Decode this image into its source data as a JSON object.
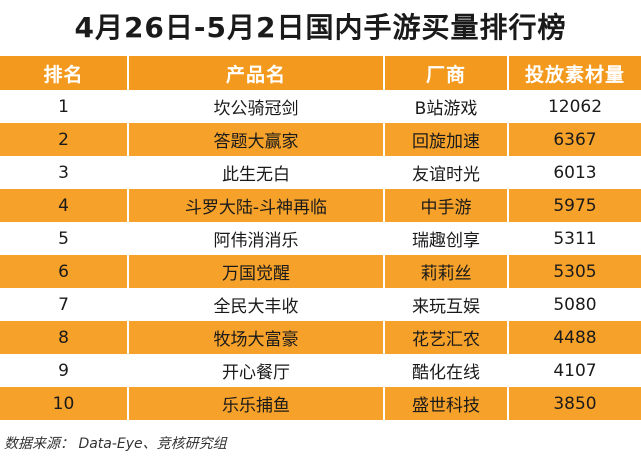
{
  "title": "4月26日-5月2日国内手游买量排行榜",
  "headers": [
    "排名",
    "产品名",
    "厂商",
    "投放素材量"
  ],
  "rows": [
    {
      "rank": "1",
      "product": "坎公骑冠剑",
      "vendor": "B站游戏",
      "count": "12062"
    },
    {
      "rank": "2",
      "product": "答题大赢家",
      "vendor": "回旋加速",
      "count": "6367"
    },
    {
      "rank": "3",
      "product": "此生无白",
      "vendor": "友谊时光",
      "count": "6013"
    },
    {
      "rank": "4",
      "product": "斗罗大陆-斗神再临",
      "vendor": "中手游",
      "count": "5975"
    },
    {
      "rank": "5",
      "product": "阿伟消消乐",
      "vendor": "瑞趣创享",
      "count": "5311"
    },
    {
      "rank": "6",
      "product": "万国觉醒",
      "vendor": "莉莉丝",
      "count": "5305"
    },
    {
      "rank": "7",
      "product": "全民大丰收",
      "vendor": "来玩互娱",
      "count": "5080"
    },
    {
      "rank": "8",
      "product": "牧场大富豪",
      "vendor": "花艺汇农",
      "count": "4488"
    },
    {
      "rank": "9",
      "product": "开心餐厅",
      "vendor": "酷化在线",
      "count": "4107"
    },
    {
      "rank": "10",
      "product": "乐乐捕鱼",
      "vendor": "盛世科技",
      "count": "3850"
    }
  ],
  "source": "数据来源： Data-Eye、竞核研究组",
  "colors": {
    "header_bg": "#f39a1e",
    "stripe_bg": "#f5a12a",
    "base_bg": "#ffffff"
  }
}
